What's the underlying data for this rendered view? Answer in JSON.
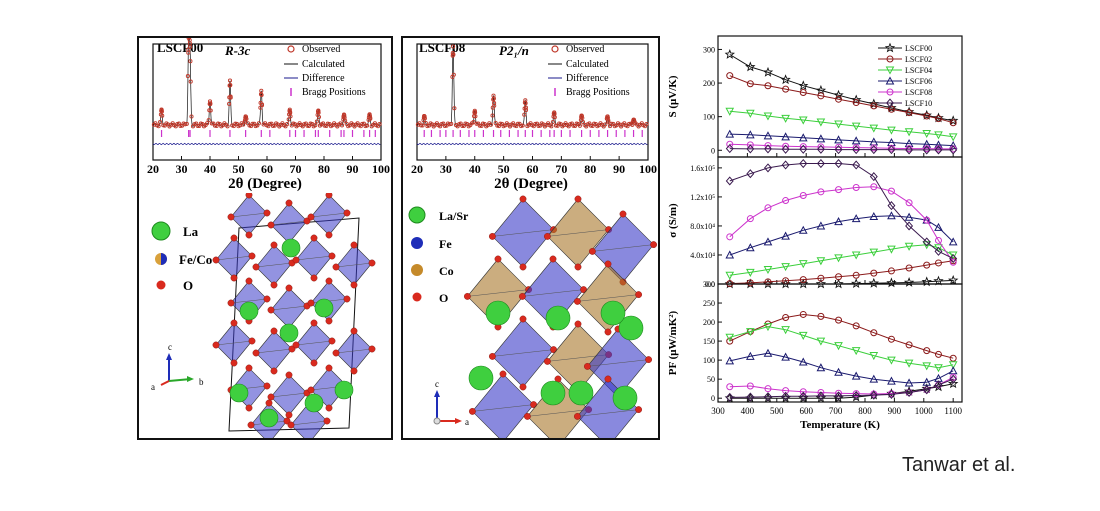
{
  "credit": "Tanwar et al.",
  "xrd_left": {
    "sample": "LSCF00",
    "space_group": "R-3c",
    "legend": [
      "Observed",
      "Calculated",
      "Difference",
      "Bragg Positions"
    ],
    "xlabel": "2θ (Degree)",
    "xticks": [
      "20",
      "30",
      "40",
      "50",
      "60",
      "70",
      "80",
      "90",
      "100"
    ],
    "xlim": [
      20,
      100
    ],
    "peaks": [
      {
        "x": 23,
        "h": 0.18
      },
      {
        "x": 32.5,
        "h": 1.0
      },
      {
        "x": 33,
        "h": 0.85
      },
      {
        "x": 40,
        "h": 0.32
      },
      {
        "x": 47,
        "h": 0.55
      },
      {
        "x": 52.5,
        "h": 0.12
      },
      {
        "x": 58,
        "h": 0.45
      },
      {
        "x": 68,
        "h": 0.2
      },
      {
        "x": 78,
        "h": 0.18
      },
      {
        "x": 87,
        "h": 0.14
      },
      {
        "x": 96,
        "h": 0.12
      }
    ],
    "bragg": [
      23,
      32.5,
      33,
      40,
      47,
      52.5,
      58,
      61,
      68,
      70,
      73,
      77,
      78,
      82,
      86,
      87,
      90,
      94,
      96,
      98
    ]
  },
  "xrd_mid": {
    "sample": "LSCF08",
    "space_group": "P2₁/n",
    "legend": [
      "Observed",
      "Calculated",
      "Difference",
      "Bragg Positions"
    ],
    "xlabel": "2θ (Degree)",
    "xticks": [
      "20",
      "30",
      "40",
      "50",
      "60",
      "70",
      "80",
      "90",
      "100"
    ],
    "xlim": [
      20,
      100
    ],
    "peaks": [
      {
        "x": 22.5,
        "h": 0.1
      },
      {
        "x": 32.5,
        "h": 1.0
      },
      {
        "x": 40,
        "h": 0.2
      },
      {
        "x": 46.5,
        "h": 0.38
      },
      {
        "x": 57.5,
        "h": 0.3
      },
      {
        "x": 67.5,
        "h": 0.14
      },
      {
        "x": 77,
        "h": 0.12
      },
      {
        "x": 86,
        "h": 0.1
      },
      {
        "x": 95,
        "h": 0.08
      }
    ],
    "bragg": [
      22.5,
      25,
      28,
      30,
      32.5,
      35,
      38,
      40,
      43,
      46.5,
      49,
      52,
      55,
      57.5,
      60,
      63,
      66,
      67.5,
      70,
      73,
      77,
      80,
      83,
      86,
      89,
      92,
      95,
      98
    ]
  },
  "structure_left": {
    "legend": [
      {
        "label": "La",
        "color": "#3fcf3f"
      },
      {
        "label": "Fe/Co",
        "color": "#d9a13b"
      },
      {
        "label": "O",
        "color": "#d92a1e"
      }
    ],
    "axes": [
      "c",
      "a",
      "b"
    ]
  },
  "structure_mid": {
    "legend": [
      {
        "label": "La/Sr",
        "color": "#3fcf3f"
      },
      {
        "label": "Fe",
        "color": "#1e2db8"
      },
      {
        "label": "Co",
        "color": "#c58a2a"
      },
      {
        "label": "O",
        "color": "#d92a1e"
      }
    ],
    "axes": [
      "c",
      "a"
    ]
  },
  "chart_data": [
    {
      "type": "line",
      "ylabel": "S (μV/K)",
      "ylim": [
        -20,
        340
      ],
      "yticks": [
        "0",
        "100",
        "200",
        "300"
      ],
      "x": [
        340,
        410,
        470,
        530,
        590,
        650,
        710,
        770,
        830,
        890,
        950,
        1010,
        1050,
        1100
      ],
      "legend_position": "top-right",
      "series": [
        {
          "name": "LSCF00",
          "marker": "star",
          "color": "#111111",
          "values": [
            285,
            248,
            232,
            210,
            192,
            178,
            164,
            150,
            138,
            126,
            114,
            104,
            96,
            88
          ]
        },
        {
          "name": "LSCF02",
          "marker": "circle",
          "color": "#8b1a1a",
          "values": [
            222,
            198,
            192,
            182,
            172,
            162,
            152,
            142,
            132,
            122,
            112,
            102,
            94,
            82
          ]
        },
        {
          "name": "LSCF04",
          "marker": "triangle-down",
          "color": "#3ccf3c",
          "values": [
            116,
            110,
            102,
            95,
            90,
            84,
            78,
            72,
            66,
            60,
            55,
            50,
            46,
            40
          ]
        },
        {
          "name": "LSCF06",
          "marker": "triangle-up",
          "color": "#1a1a6e",
          "values": [
            48,
            46,
            43,
            40,
            37,
            34,
            31,
            28,
            25,
            23,
            20,
            18,
            16,
            14
          ]
        },
        {
          "name": "LSCF08",
          "marker": "circle",
          "color": "#cc33cc",
          "values": [
            18,
            16,
            14,
            12,
            11,
            10,
            9,
            8,
            7,
            6,
            5,
            5,
            4,
            4
          ]
        },
        {
          "name": "LSCF10",
          "marker": "diamond",
          "color": "#3a1a4e",
          "values": [
            5,
            4,
            4,
            3,
            3,
            3,
            2,
            2,
            2,
            2,
            1,
            1,
            1,
            1
          ]
        }
      ]
    },
    {
      "type": "line",
      "ylabel": "σ (S/m)",
      "ylim": [
        0,
        175000
      ],
      "yticks": [
        "0.0",
        "4.0x10⁴",
        "8.0x10⁴",
        "1.2x10⁵",
        "1.6x10⁵"
      ],
      "x": [
        340,
        410,
        470,
        530,
        590,
        650,
        710,
        770,
        830,
        890,
        950,
        1010,
        1050,
        1100
      ],
      "series": [
        {
          "name": "LSCF00",
          "marker": "star",
          "color": "#111111",
          "values": [
            0,
            0,
            0,
            0,
            0,
            0,
            0,
            500,
            1000,
            1500,
            2000,
            3000,
            4000,
            5000
          ]
        },
        {
          "name": "LSCF02",
          "marker": "circle",
          "color": "#8b1a1a",
          "values": [
            500,
            1500,
            3000,
            4500,
            6000,
            8000,
            10000,
            12000,
            15000,
            18000,
            22000,
            26000,
            29000,
            32000
          ]
        },
        {
          "name": "LSCF04",
          "marker": "triangle-down",
          "color": "#3ccf3c",
          "values": [
            12000,
            16000,
            20000,
            24000,
            28000,
            32000,
            36000,
            40000,
            44000,
            48000,
            52000,
            54000,
            50000,
            40000
          ]
        },
        {
          "name": "LSCF06",
          "marker": "triangle-up",
          "color": "#1a1a6e",
          "values": [
            40000,
            50000,
            58000,
            66000,
            74000,
            80000,
            86000,
            90000,
            93000,
            94000,
            92000,
            88000,
            78000,
            58000
          ]
        },
        {
          "name": "LSCF08",
          "marker": "circle",
          "color": "#cc33cc",
          "values": [
            65000,
            90000,
            105000,
            115000,
            122000,
            127000,
            130000,
            133000,
            134000,
            128000,
            112000,
            88000,
            60000,
            30000
          ]
        },
        {
          "name": "LSCF10",
          "marker": "diamond",
          "color": "#3a1a4e",
          "values": [
            142000,
            152000,
            160000,
            164000,
            166000,
            166000,
            166000,
            164000,
            148000,
            108000,
            80000,
            58000,
            45000,
            35000
          ]
        }
      ]
    },
    {
      "type": "line",
      "ylabel": "PF (μW/mK²)",
      "xlabel": "Temperature (K)",
      "xlim": [
        300,
        1130
      ],
      "ylim": [
        -10,
        300
      ],
      "yticks": [
        "0",
        "50",
        "100",
        "150",
        "200",
        "250",
        "300"
      ],
      "xticks": [
        "300",
        "400",
        "500",
        "600",
        "700",
        "800",
        "900",
        "1000",
        "1100"
      ],
      "x": [
        340,
        410,
        470,
        530,
        590,
        650,
        710,
        770,
        830,
        890,
        950,
        1010,
        1050,
        1100
      ],
      "series": [
        {
          "name": "LSCF00",
          "marker": "star",
          "color": "#111111",
          "values": [
            0,
            0,
            0,
            0,
            0,
            0,
            0,
            3,
            8,
            12,
            18,
            25,
            30,
            38
          ]
        },
        {
          "name": "LSCF02",
          "marker": "circle",
          "color": "#8b1a1a",
          "values": [
            150,
            175,
            195,
            212,
            220,
            215,
            205,
            190,
            172,
            155,
            140,
            125,
            115,
            105
          ]
        },
        {
          "name": "LSCF04",
          "marker": "triangle-down",
          "color": "#3ccf3c",
          "values": [
            160,
            175,
            188,
            180,
            165,
            150,
            138,
            125,
            112,
            100,
            92,
            85,
            80,
            88
          ]
        },
        {
          "name": "LSCF06",
          "marker": "triangle-up",
          "color": "#1a1a6e",
          "values": [
            98,
            110,
            118,
            108,
            95,
            80,
            68,
            58,
            50,
            45,
            40,
            42,
            52,
            72
          ]
        },
        {
          "name": "LSCF08",
          "marker": "circle",
          "color": "#cc33cc",
          "values": [
            30,
            32,
            25,
            20,
            17,
            15,
            13,
            12,
            11,
            12,
            15,
            22,
            35,
            55
          ]
        },
        {
          "name": "LSCF10",
          "marker": "diamond",
          "color": "#3a1a4e",
          "values": [
            2,
            3,
            4,
            5,
            5,
            6,
            6,
            7,
            8,
            10,
            15,
            22,
            35,
            50
          ]
        }
      ]
    }
  ]
}
